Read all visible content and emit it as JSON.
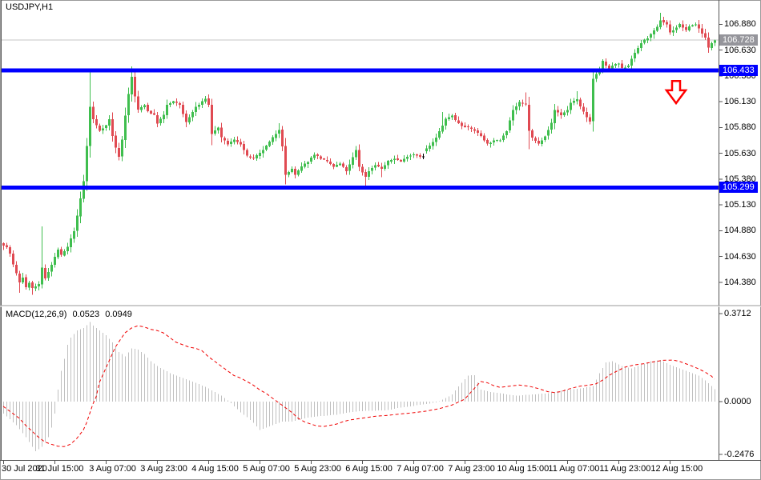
{
  "window": {
    "title": "USDJPY,H1"
  },
  "colors": {
    "up_candle": "#3fbe4e",
    "down_candle": "#e04a52",
    "doji_candle": "#000000",
    "level_line": "#0000ff",
    "current_price_line": "#c4c4c4",
    "current_price_tag_bg": "#95959b",
    "histogram": "#c0c0c0",
    "signal_line": "#f00000",
    "arrow": "#ff0000",
    "axis_text": "#000000",
    "frame": "#555555"
  },
  "chart_data": {
    "type": "candlestick",
    "symbol": "USDJPY",
    "timeframe": "H1",
    "bar_count": 223,
    "y_axis_ticks": [
      "106.880",
      "106.630",
      "106.380",
      "106.130",
      "105.880",
      "105.630",
      "105.380",
      "105.130",
      "104.880",
      "104.630",
      "104.380"
    ],
    "time_axis": [
      {
        "label": "30 Jul 2020",
        "bar": 0
      },
      {
        "label": "31 Jul 15:00",
        "bar": 16
      },
      {
        "label": "3 Aug 07:00",
        "bar": 32
      },
      {
        "label": "3 Aug 23:00",
        "bar": 48
      },
      {
        "label": "4 Aug 15:00",
        "bar": 64
      },
      {
        "label": "5 Aug 07:00",
        "bar": 80
      },
      {
        "label": "5 Aug 23:00",
        "bar": 96
      },
      {
        "label": "6 Aug 15:00",
        "bar": 112
      },
      {
        "label": "7 Aug 07:00",
        "bar": 128
      },
      {
        "label": "7 Aug 23:00",
        "bar": 144
      },
      {
        "label": "10 Aug 15:00",
        "bar": 160
      },
      {
        "label": "11 Aug 07:00",
        "bar": 176
      },
      {
        "label": "11 Aug 23:00",
        "bar": 192
      },
      {
        "label": "12 Aug 15:00",
        "bar": 208
      }
    ],
    "close_anchors": [
      [
        0,
        104.74
      ],
      [
        1,
        104.72
      ],
      [
        2,
        104.66
      ],
      [
        3,
        104.55
      ],
      [
        5,
        104.38
      ],
      [
        6,
        104.43
      ],
      [
        7,
        104.33
      ],
      [
        8,
        104.38
      ],
      [
        9,
        104.32
      ],
      [
        11,
        104.36
      ],
      [
        12,
        104.52
      ],
      [
        13,
        104.42
      ],
      [
        15,
        104.55
      ],
      [
        17,
        104.7
      ],
      [
        18,
        104.64
      ],
      [
        20,
        104.72
      ],
      [
        22,
        104.88
      ],
      [
        23,
        105.02
      ],
      [
        25,
        105.36
      ],
      [
        26,
        105.7
      ],
      [
        27,
        106.08
      ],
      [
        28,
        105.96
      ],
      [
        29,
        105.9
      ],
      [
        30,
        105.85
      ],
      [
        32,
        105.9
      ],
      [
        33,
        105.96
      ],
      [
        34,
        105.8
      ],
      [
        35,
        105.68
      ],
      [
        36,
        105.6
      ],
      [
        37,
        105.76
      ],
      [
        38,
        106.0
      ],
      [
        39,
        106.2
      ],
      [
        40,
        106.37
      ],
      [
        41,
        106.18
      ],
      [
        42,
        106.05
      ],
      [
        44,
        106.1
      ],
      [
        45,
        106.04
      ],
      [
        47,
        106.0
      ],
      [
        48,
        105.92
      ],
      [
        50,
        106.0
      ],
      [
        51,
        106.1
      ],
      [
        53,
        106.13
      ],
      [
        55,
        106.1
      ],
      [
        57,
        105.93
      ],
      [
        58,
        105.98
      ],
      [
        60,
        106.08
      ],
      [
        61,
        106.1
      ],
      [
        63,
        106.16
      ],
      [
        64,
        106.1
      ],
      [
        65,
        105.82
      ],
      [
        67,
        105.88
      ],
      [
        68,
        105.78
      ],
      [
        70,
        105.72
      ],
      [
        72,
        105.76
      ],
      [
        74,
        105.72
      ],
      [
        76,
        105.6
      ],
      [
        78,
        105.58
      ],
      [
        80,
        105.63
      ],
      [
        82,
        105.7
      ],
      [
        84,
        105.78
      ],
      [
        86,
        105.86
      ],
      [
        87,
        105.7
      ],
      [
        88,
        105.42
      ],
      [
        90,
        105.48
      ],
      [
        91,
        105.42
      ],
      [
        93,
        105.5
      ],
      [
        95,
        105.55
      ],
      [
        97,
        105.62
      ],
      [
        99,
        105.58
      ],
      [
        101,
        105.55
      ],
      [
        103,
        105.5
      ],
      [
        105,
        105.53
      ],
      [
        107,
        105.46
      ],
      [
        108,
        105.52
      ],
      [
        110,
        105.66
      ],
      [
        111,
        105.5
      ],
      [
        113,
        105.4
      ],
      [
        114,
        105.46
      ],
      [
        116,
        105.52
      ],
      [
        118,
        105.48
      ],
      [
        120,
        105.55
      ],
      [
        122,
        105.58
      ],
      [
        124,
        105.55
      ],
      [
        126,
        105.6
      ],
      [
        128,
        105.62
      ],
      [
        130,
        105.6
      ],
      [
        131,
        105.65
      ],
      [
        133,
        105.7
      ],
      [
        135,
        105.78
      ],
      [
        137,
        105.9
      ],
      [
        138,
        105.96
      ],
      [
        140,
        106.0
      ],
      [
        141,
        105.95
      ],
      [
        143,
        105.9
      ],
      [
        145,
        105.88
      ],
      [
        147,
        105.85
      ],
      [
        149,
        105.8
      ],
      [
        151,
        105.72
      ],
      [
        153,
        105.75
      ],
      [
        155,
        105.76
      ],
      [
        157,
        105.85
      ],
      [
        159,
        106.05
      ],
      [
        161,
        106.12
      ],
      [
        163,
        106.1
      ],
      [
        164,
        105.85
      ],
      [
        165,
        105.78
      ],
      [
        167,
        105.72
      ],
      [
        169,
        105.8
      ],
      [
        171,
        105.92
      ],
      [
        172,
        106.05
      ],
      [
        174,
        106.0
      ],
      [
        176,
        106.05
      ],
      [
        177,
        106.12
      ],
      [
        179,
        106.15
      ],
      [
        180,
        106.08
      ],
      [
        182,
        105.98
      ],
      [
        183,
        105.94
      ],
      [
        184,
        106.35
      ],
      [
        186,
        106.45
      ],
      [
        187,
        106.52
      ],
      [
        189,
        106.44
      ],
      [
        190,
        106.48
      ],
      [
        192,
        106.5
      ],
      [
        193,
        106.45
      ],
      [
        195,
        106.48
      ],
      [
        196,
        106.55
      ],
      [
        198,
        106.65
      ],
      [
        199,
        106.7
      ],
      [
        201,
        106.75
      ],
      [
        202,
        106.78
      ],
      [
        204,
        106.85
      ],
      [
        205,
        106.92
      ],
      [
        207,
        106.88
      ],
      [
        208,
        106.8
      ],
      [
        210,
        106.85
      ],
      [
        211,
        106.88
      ],
      [
        213,
        106.82
      ],
      [
        214,
        106.86
      ],
      [
        216,
        106.88
      ],
      [
        217,
        106.84
      ],
      [
        219,
        106.75
      ],
      [
        220,
        106.65
      ],
      [
        221,
        106.7
      ],
      [
        222,
        106.73
      ]
    ],
    "wick_high_overrides": {
      "12": 104.92,
      "27": 106.42,
      "40": 106.47,
      "86": 105.92,
      "137": 106.03,
      "163": 106.22,
      "179": 106.23,
      "205": 106.99
    },
    "wick_low_overrides": {
      "5": 104.28,
      "9": 104.26,
      "65": 105.71,
      "88": 105.33,
      "113": 105.29,
      "118": 105.4,
      "164": 105.67,
      "183": 105.91
    },
    "doji_bars": [
      131
    ],
    "noise_seed": 7
  },
  "levels": [
    {
      "label": "106.433",
      "price": 106.433
    },
    {
      "label": "105.299",
      "price": 105.299
    }
  ],
  "current_price": {
    "label": "106.728",
    "price": 106.728
  },
  "arrow": {
    "shape": "down-arrow",
    "bar_center": 210,
    "price_top": 106.33,
    "price_bottom": 106.115
  },
  "macd": {
    "name": "MACD(12,26,9)",
    "macd_value": "0.0523",
    "signal_value": "0.0949",
    "axis_ticks": [
      "0.3712",
      "0.0000",
      "-0.2476"
    ],
    "axis_max": 0.3712,
    "axis_min": -0.2476,
    "histogram_anchors": [
      [
        0,
        -0.05
      ],
      [
        4,
        -0.1
      ],
      [
        7,
        -0.15
      ],
      [
        9,
        -0.19
      ],
      [
        10,
        -0.21
      ],
      [
        12,
        -0.19
      ],
      [
        14,
        -0.15
      ],
      [
        15,
        -0.11
      ],
      [
        16,
        -0.05
      ],
      [
        17,
        0.05
      ],
      [
        18,
        0.13
      ],
      [
        19,
        0.18
      ],
      [
        20,
        0.24
      ],
      [
        21,
        0.27
      ],
      [
        23,
        0.3
      ],
      [
        25,
        0.31
      ],
      [
        27,
        0.335
      ],
      [
        28,
        0.32
      ],
      [
        30,
        0.3
      ],
      [
        32,
        0.28
      ],
      [
        34,
        0.25
      ],
      [
        36,
        0.21
      ],
      [
        38,
        0.19
      ],
      [
        40,
        0.225
      ],
      [
        42,
        0.22
      ],
      [
        44,
        0.2
      ],
      [
        46,
        0.17
      ],
      [
        48,
        0.15
      ],
      [
        50,
        0.135
      ],
      [
        52,
        0.12
      ],
      [
        55,
        0.105
      ],
      [
        58,
        0.09
      ],
      [
        61,
        0.075
      ],
      [
        64,
        0.055
      ],
      [
        66,
        0.04
      ],
      [
        68,
        0.025
      ],
      [
        70,
        0.005
      ],
      [
        72,
        -0.02
      ],
      [
        74,
        -0.045
      ],
      [
        76,
        -0.065
      ],
      [
        78,
        -0.09
      ],
      [
        80,
        -0.12
      ],
      [
        82,
        -0.11
      ],
      [
        84,
        -0.1
      ],
      [
        87,
        -0.085
      ],
      [
        90,
        -0.085
      ],
      [
        93,
        -0.075
      ],
      [
        96,
        -0.065
      ],
      [
        100,
        -0.06
      ],
      [
        104,
        -0.055
      ],
      [
        108,
        -0.045
      ],
      [
        112,
        -0.04
      ],
      [
        116,
        -0.038
      ],
      [
        120,
        -0.036
      ],
      [
        124,
        -0.025
      ],
      [
        128,
        -0.018
      ],
      [
        132,
        -0.01
      ],
      [
        135,
        -0.003
      ],
      [
        137,
        0.008
      ],
      [
        140,
        0.03
      ],
      [
        143,
        0.08
      ],
      [
        145,
        0.11
      ],
      [
        147,
        0.112
      ],
      [
        149,
        0.05
      ],
      [
        152,
        0.04
      ],
      [
        155,
        0.035
      ],
      [
        160,
        0.025
      ],
      [
        165,
        0.03
      ],
      [
        170,
        0.035
      ],
      [
        175,
        0.05
      ],
      [
        180,
        0.055
      ],
      [
        184,
        0.065
      ],
      [
        186,
        0.12
      ],
      [
        188,
        0.165
      ],
      [
        190,
        0.17
      ],
      [
        193,
        0.15
      ],
      [
        196,
        0.14
      ],
      [
        199,
        0.155
      ],
      [
        202,
        0.17
      ],
      [
        205,
        0.175
      ],
      [
        208,
        0.155
      ],
      [
        211,
        0.14
      ],
      [
        214,
        0.125
      ],
      [
        217,
        0.11
      ],
      [
        219,
        0.09
      ],
      [
        221,
        0.065
      ],
      [
        222,
        0.0523
      ]
    ],
    "signal_anchors": [
      [
        0,
        -0.02
      ],
      [
        3,
        -0.05
      ],
      [
        5,
        -0.07
      ],
      [
        7,
        -0.1
      ],
      [
        9,
        -0.125
      ],
      [
        11,
        -0.15
      ],
      [
        13,
        -0.17
      ],
      [
        15,
        -0.18
      ],
      [
        17,
        -0.188
      ],
      [
        19,
        -0.19
      ],
      [
        21,
        -0.18
      ],
      [
        23,
        -0.155
      ],
      [
        25,
        -0.12
      ],
      [
        26,
        -0.09
      ],
      [
        28,
        -0.01
      ],
      [
        29,
        0.02
      ],
      [
        30,
        0.08
      ],
      [
        32,
        0.14
      ],
      [
        34,
        0.2
      ],
      [
        35,
        0.23
      ],
      [
        37,
        0.27
      ],
      [
        38,
        0.29
      ],
      [
        40,
        0.31
      ],
      [
        42,
        0.32
      ],
      [
        44,
        0.315
      ],
      [
        46,
        0.305
      ],
      [
        48,
        0.3
      ],
      [
        50,
        0.29
      ],
      [
        52,
        0.27
      ],
      [
        54,
        0.25
      ],
      [
        56,
        0.24
      ],
      [
        58,
        0.23
      ],
      [
        60,
        0.225
      ],
      [
        62,
        0.215
      ],
      [
        64,
        0.19
      ],
      [
        66,
        0.17
      ],
      [
        68,
        0.15
      ],
      [
        70,
        0.13
      ],
      [
        72,
        0.11
      ],
      [
        74,
        0.1
      ],
      [
        76,
        0.085
      ],
      [
        78,
        0.07
      ],
      [
        80,
        0.05
      ],
      [
        82,
        0.035
      ],
      [
        84,
        0.015
      ],
      [
        86,
        -0.005
      ],
      [
        88,
        -0.025
      ],
      [
        90,
        -0.045
      ],
      [
        92,
        -0.07
      ],
      [
        94,
        -0.085
      ],
      [
        96,
        -0.095
      ],
      [
        98,
        -0.103
      ],
      [
        100,
        -0.105
      ],
      [
        102,
        -0.1
      ],
      [
        104,
        -0.095
      ],
      [
        106,
        -0.085
      ],
      [
        108,
        -0.078
      ],
      [
        112,
        -0.07
      ],
      [
        116,
        -0.062
      ],
      [
        120,
        -0.058
      ],
      [
        124,
        -0.052
      ],
      [
        128,
        -0.047
      ],
      [
        132,
        -0.04
      ],
      [
        136,
        -0.03
      ],
      [
        140,
        -0.015
      ],
      [
        144,
        0.01
      ],
      [
        146,
        0.04
      ],
      [
        148,
        0.07
      ],
      [
        149,
        0.085
      ],
      [
        151,
        0.08
      ],
      [
        153,
        0.068
      ],
      [
        155,
        0.06
      ],
      [
        158,
        0.065
      ],
      [
        161,
        0.07
      ],
      [
        164,
        0.065
      ],
      [
        167,
        0.055
      ],
      [
        170,
        0.042
      ],
      [
        172,
        0.038
      ],
      [
        174,
        0.042
      ],
      [
        177,
        0.055
      ],
      [
        180,
        0.065
      ],
      [
        183,
        0.07
      ],
      [
        185,
        0.075
      ],
      [
        187,
        0.09
      ],
      [
        189,
        0.11
      ],
      [
        191,
        0.125
      ],
      [
        194,
        0.145
      ],
      [
        197,
        0.155
      ],
      [
        200,
        0.16
      ],
      [
        203,
        0.168
      ],
      [
        206,
        0.174
      ],
      [
        209,
        0.175
      ],
      [
        211,
        0.17
      ],
      [
        213,
        0.16
      ],
      [
        215,
        0.15
      ],
      [
        217,
        0.138
      ],
      [
        219,
        0.125
      ],
      [
        221,
        0.108
      ],
      [
        222,
        0.0949
      ]
    ]
  }
}
